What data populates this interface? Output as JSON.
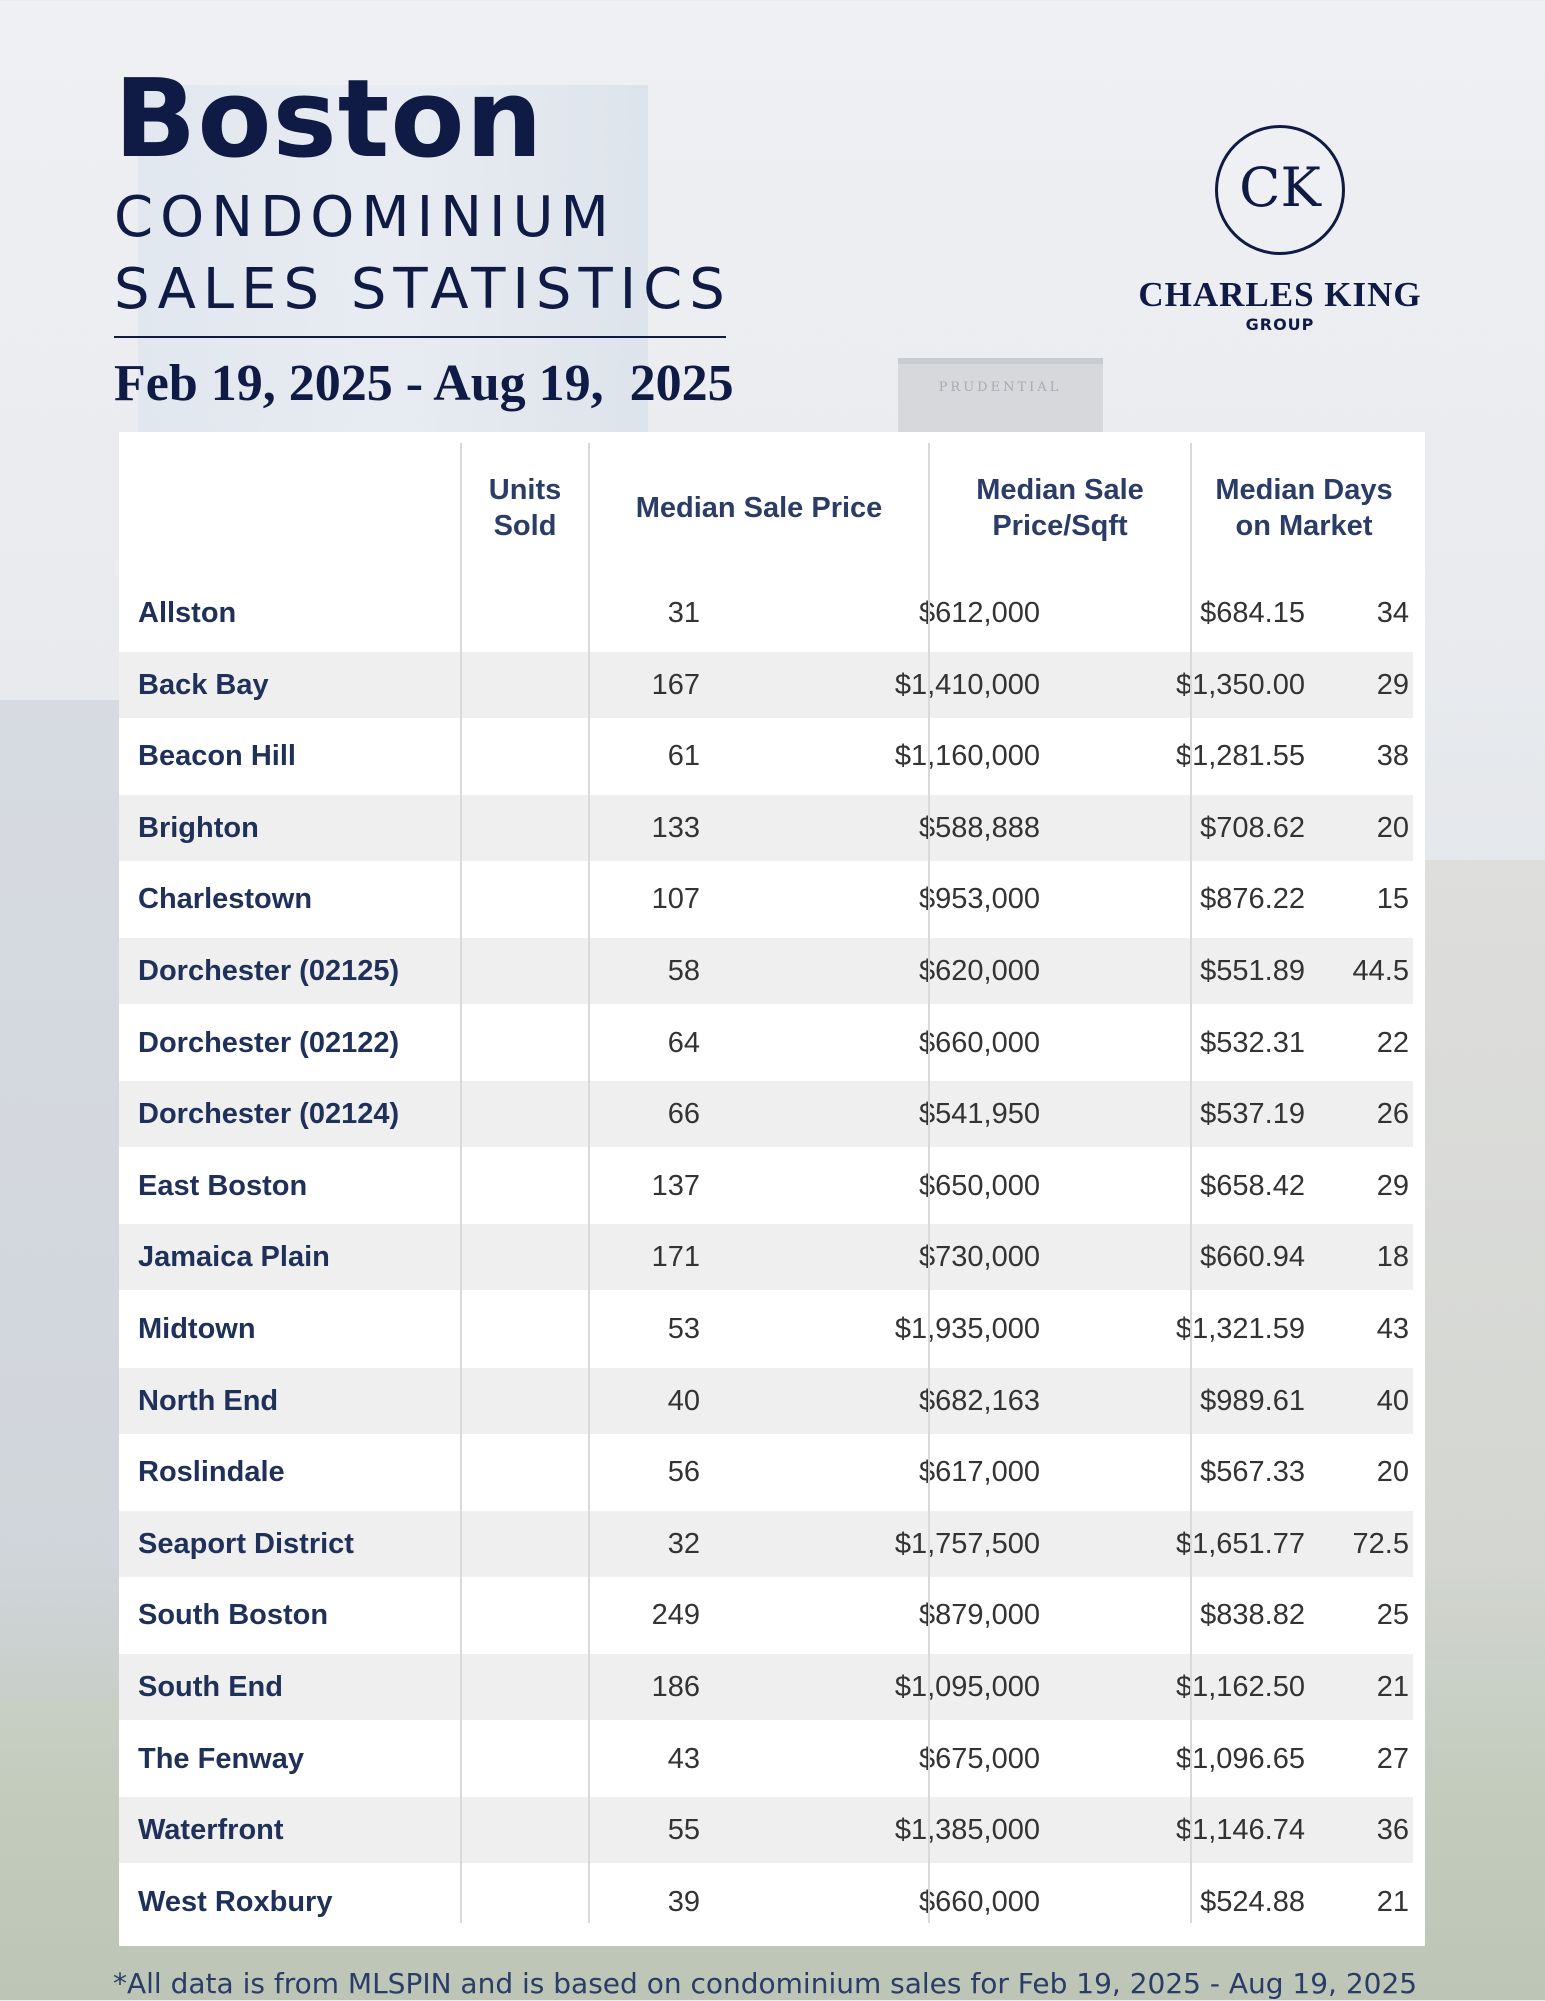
{
  "header": {
    "title": "Boston",
    "subtitle_line1": "CONDOMINIUM",
    "subtitle_line2": "SALES STATISTICS",
    "date_range": "Feb 19, 2025 - Aug 19,  2025"
  },
  "background": {
    "building_sign": "PRUDENTIAL"
  },
  "logo": {
    "monogram": "CK",
    "name": "CHARLES KING",
    "tagline": "GROUP"
  },
  "table": {
    "columns": {
      "units": "Units Sold",
      "median_price": "Median Sale Price",
      "price_sqft": "Median Sale Price/Sqft",
      "days_on_market": "Median Days on Market"
    },
    "rows": [
      {
        "name": "Allston",
        "units": "31",
        "price": "$612,000",
        "sqft": "$684.15",
        "dom": "34"
      },
      {
        "name": "Back Bay",
        "units": "167",
        "price": "$1,410,000",
        "sqft": "$1,350.00",
        "dom": "29"
      },
      {
        "name": "Beacon Hill",
        "units": "61",
        "price": "$1,160,000",
        "sqft": "$1,281.55",
        "dom": "38"
      },
      {
        "name": "Brighton",
        "units": "133",
        "price": "$588,888",
        "sqft": "$708.62",
        "dom": "20"
      },
      {
        "name": "Charlestown",
        "units": "107",
        "price": "$953,000",
        "sqft": "$876.22",
        "dom": "15"
      },
      {
        "name": "Dorchester (02125)",
        "units": "58",
        "price": "$620,000",
        "sqft": "$551.89",
        "dom": "44.5"
      },
      {
        "name": "Dorchester (02122)",
        "units": "64",
        "price": "$660,000",
        "sqft": "$532.31",
        "dom": "22"
      },
      {
        "name": "Dorchester (02124)",
        "units": "66",
        "price": "$541,950",
        "sqft": "$537.19",
        "dom": "26"
      },
      {
        "name": "East Boston",
        "units": "137",
        "price": "$650,000",
        "sqft": "$658.42",
        "dom": "29"
      },
      {
        "name": "Jamaica Plain",
        "units": "171",
        "price": "$730,000",
        "sqft": "$660.94",
        "dom": "18"
      },
      {
        "name": "Midtown",
        "units": "53",
        "price": "$1,935,000",
        "sqft": "$1,321.59",
        "dom": "43"
      },
      {
        "name": "North End",
        "units": "40",
        "price": "$682,163",
        "sqft": "$989.61",
        "dom": "40"
      },
      {
        "name": "Roslindale",
        "units": "56",
        "price": "$617,000",
        "sqft": "$567.33",
        "dom": "20"
      },
      {
        "name": "Seaport District",
        "units": "32",
        "price": "$1,757,500",
        "sqft": "$1,651.77",
        "dom": "72.5"
      },
      {
        "name": "South Boston",
        "units": "249",
        "price": "$879,000",
        "sqft": "$838.82",
        "dom": "25"
      },
      {
        "name": "South End",
        "units": "186",
        "price": "$1,095,000",
        "sqft": "$1,162.50",
        "dom": "21"
      },
      {
        "name": "The Fenway",
        "units": "43",
        "price": "$675,000",
        "sqft": "$1,096.65",
        "dom": "27"
      },
      {
        "name": "Waterfront",
        "units": "55",
        "price": "$1,385,000",
        "sqft": "$1,146.74",
        "dom": "36"
      },
      {
        "name": "West Roxbury",
        "units": "39",
        "price": "$660,000",
        "sqft": "$524.88",
        "dom": "21"
      }
    ]
  },
  "footnote": "*All data is from MLSPIN and is based on condominium sales for Feb 19, 2025 - Aug 19, 2025"
}
